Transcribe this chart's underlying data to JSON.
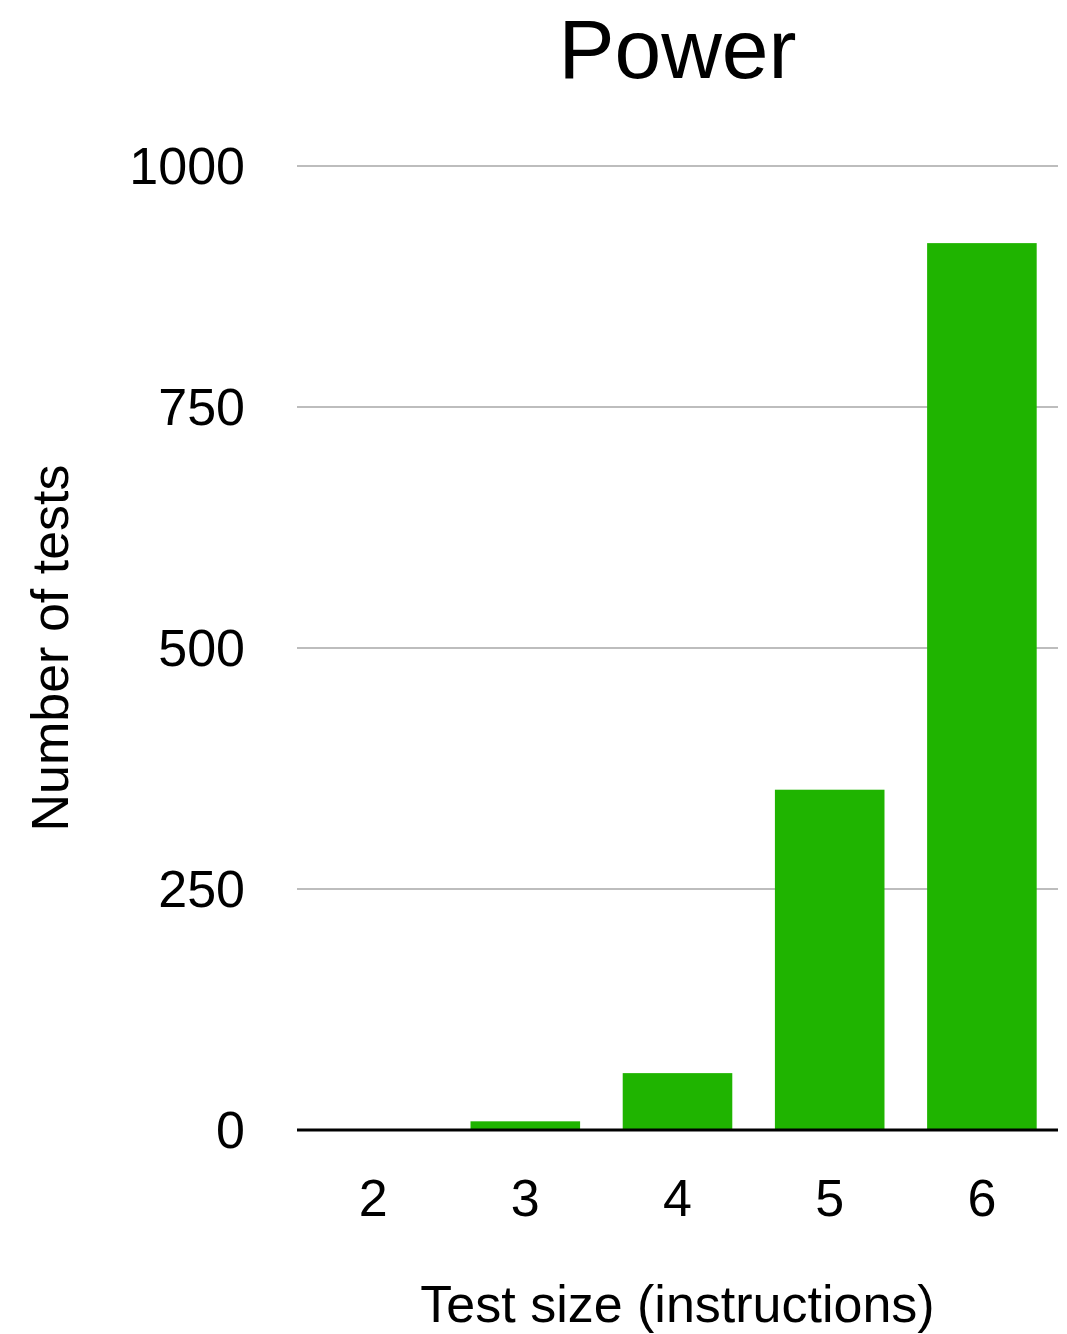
{
  "chart_data": {
    "type": "bar",
    "title": "Power",
    "xlabel": "Test size (instructions)",
    "ylabel": "Number of tests",
    "categories": [
      "2",
      "3",
      "4",
      "5",
      "6"
    ],
    "values": [
      0,
      9,
      59,
      353,
      920
    ],
    "color": "#1fb400",
    "ylim": [
      0,
      1000
    ],
    "yticks": [
      0,
      250,
      500,
      750,
      1000
    ],
    "grid": "y"
  }
}
